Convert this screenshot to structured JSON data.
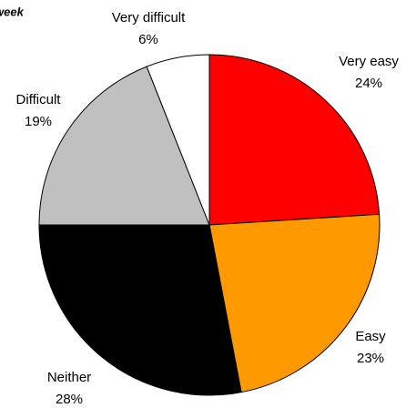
{
  "chart_data": {
    "type": "pie",
    "title": "week",
    "categories": [
      "Very easy",
      "Easy",
      "Neither",
      "Difficult",
      "Very difficult"
    ],
    "values": [
      24,
      23,
      28,
      19,
      6
    ],
    "value_labels": [
      "24%",
      "23%",
      "28%",
      "19%",
      "6%"
    ],
    "colors": [
      "#ff0000",
      "#ff9900",
      "#000000",
      "#c0c0c0",
      "#ffffff"
    ]
  }
}
